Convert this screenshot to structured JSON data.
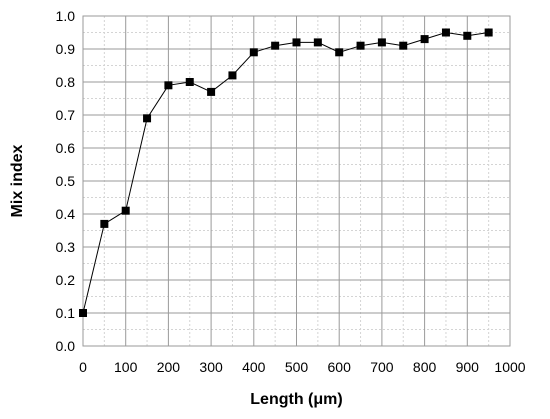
{
  "chart_data": {
    "type": "line",
    "title": "",
    "xlabel": "Length (μm)",
    "ylabel": "Mix index",
    "xlim": [
      0,
      1000
    ],
    "ylim": [
      0,
      1.0
    ],
    "x_ticks": [
      "0",
      "100",
      "200",
      "300",
      "400",
      "500",
      "600",
      "700",
      "800",
      "900",
      "1000"
    ],
    "y_ticks": [
      "0.0",
      "0.1",
      "0.2",
      "0.3",
      "0.4",
      "0.5",
      "0.6",
      "0.7",
      "0.8",
      "0.9",
      "1.0"
    ],
    "grid": {
      "major": true,
      "minor": true,
      "major_color": "#9a9a9a",
      "minor_color": "#d4d4d4"
    },
    "legend": "none",
    "series": [
      {
        "marker": "square",
        "color": "#000000",
        "x": [
          0,
          50,
          100,
          150,
          200,
          250,
          300,
          350,
          400,
          450,
          500,
          550,
          600,
          650,
          700,
          750,
          800,
          850,
          900,
          950
        ],
        "y": [
          0.1,
          0.37,
          0.41,
          0.69,
          0.79,
          0.8,
          0.77,
          0.82,
          0.89,
          0.91,
          0.92,
          0.92,
          0.89,
          0.91,
          0.92,
          0.91,
          0.93,
          0.95,
          0.94,
          0.95
        ]
      }
    ]
  }
}
